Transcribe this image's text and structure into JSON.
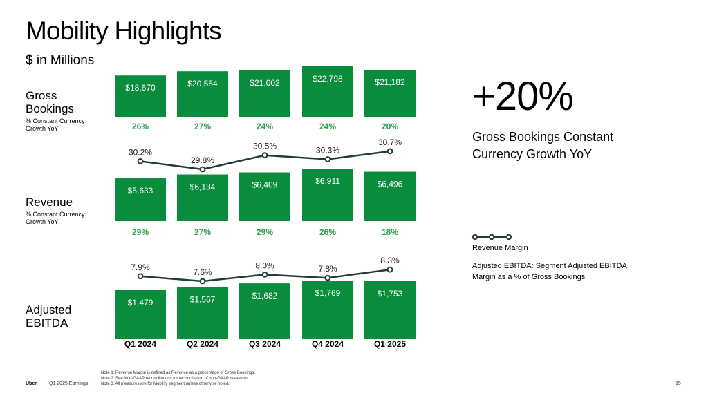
{
  "header": {
    "title": "Mobility Highlights",
    "subtitle": "$ in Millions"
  },
  "rows": {
    "gross_bookings": {
      "label": "Gross Bookings",
      "sub": "% Constant Currency Growth YoY"
    },
    "revenue": {
      "label": "Revenue",
      "sub": "% Constant Currency Growth YoY"
    },
    "ebitda": {
      "label": "Adjusted EBITDA"
    }
  },
  "highlight": {
    "value": "+20%",
    "caption": "Gross Bookings Constant Currency Growth YoY"
  },
  "legend": {
    "line_label": "Revenue Margin",
    "note": "Adjusted EBITDA: Segment Adjusted EBITDA Margin as a % of Gross Bookings"
  },
  "notes": [
    "Note 1: Revenue Margin is defined as Revenue as a percentage of Gross Bookings.",
    "Note 2: See Non-GAAP reconciliations for reconciliation of non-GAAP measures.",
    "Note 3: All measures are for Mobility segment unless otherwise noted."
  ],
  "footer": {
    "brand": "Uber",
    "deck": "Q1 2025 Earnings",
    "page": "15"
  },
  "colors": {
    "bar": "#0a8c3d",
    "growth_text": "#2f9e4f",
    "line": "#243d2f",
    "text": "#000000"
  },
  "chart_data": [
    {
      "type": "bar",
      "name": "Gross Bookings",
      "categories": [
        "Q1 2024",
        "Q2 2024",
        "Q3 2024",
        "Q4 2024",
        "Q1 2025"
      ],
      "values": [
        18670,
        20554,
        21002,
        22798,
        21182
      ],
      "value_labels": [
        "$18,670",
        "$20,554",
        "$21,002",
        "$22,798",
        "$21,182"
      ],
      "growth": [
        "26%",
        "27%",
        "24%",
        "24%",
        "20%"
      ]
    },
    {
      "type": "bar",
      "name": "Revenue",
      "categories": [
        "Q1 2024",
        "Q2 2024",
        "Q3 2024",
        "Q4 2024",
        "Q1 2025"
      ],
      "values": [
        5633,
        6134,
        6409,
        6911,
        6496
      ],
      "value_labels": [
        "$5,633",
        "$6,134",
        "$6,409",
        "$6,911",
        "$6,496"
      ],
      "growth": [
        "29%",
        "27%",
        "29%",
        "26%",
        "18%"
      ],
      "margin_line": {
        "values": [
          30.2,
          29.8,
          30.5,
          30.3,
          30.7
        ],
        "labels": [
          "30.2%",
          "29.8%",
          "30.5%",
          "30.3%",
          "30.7%"
        ]
      }
    },
    {
      "type": "bar",
      "name": "Adjusted EBITDA",
      "categories": [
        "Q1 2024",
        "Q2 2024",
        "Q3 2024",
        "Q4 2024",
        "Q1 2025"
      ],
      "values": [
        1479,
        1567,
        1682,
        1769,
        1753
      ],
      "value_labels": [
        "$1,479",
        "$1,567",
        "$1,682",
        "$1,769",
        "$1,753"
      ],
      "margin_line": {
        "values": [
          7.9,
          7.6,
          8.0,
          7.8,
          8.3
        ],
        "labels": [
          "7.9%",
          "7.6%",
          "8.0%",
          "7.8%",
          "8.3%"
        ]
      }
    }
  ]
}
